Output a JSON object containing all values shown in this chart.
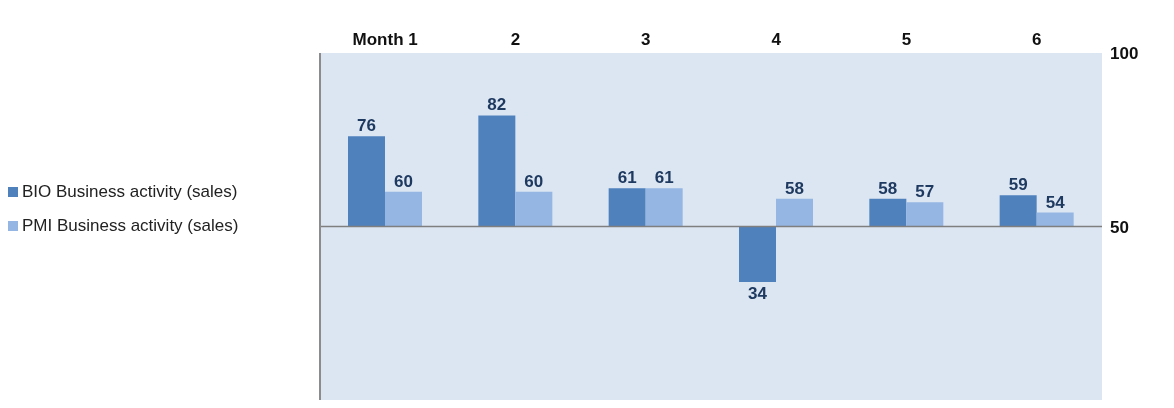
{
  "chart_data": {
    "type": "bar",
    "categories": [
      "Month 1",
      "2",
      "3",
      "4",
      "5",
      "6"
    ],
    "series": [
      {
        "name": "BIO Business activity (sales)",
        "color": "#4f81bd",
        "values": [
          26,
          32,
          11,
          -16,
          8,
          9
        ],
        "base": [
          50,
          50,
          50,
          50,
          50,
          50
        ],
        "value_labels": [
          "76",
          "82",
          "61",
          "34",
          "58",
          "59"
        ]
      },
      {
        "name": "PMI Business activity (sales)",
        "color": "#95b6e3",
        "values": [
          10,
          10,
          11,
          8,
          7,
          4
        ],
        "base": [
          50,
          50,
          50,
          50,
          50,
          50
        ],
        "value_labels": [
          "60",
          "60",
          "61",
          "58",
          "57",
          "54"
        ]
      }
    ],
    "ylim": [
      0,
      100
    ],
    "yticks": [
      50,
      100
    ],
    "ref_lines": [
      {
        "axis": "y",
        "value": 50,
        "color": "#7f7f7f"
      }
    ],
    "legend": "left",
    "grid": false
  }
}
